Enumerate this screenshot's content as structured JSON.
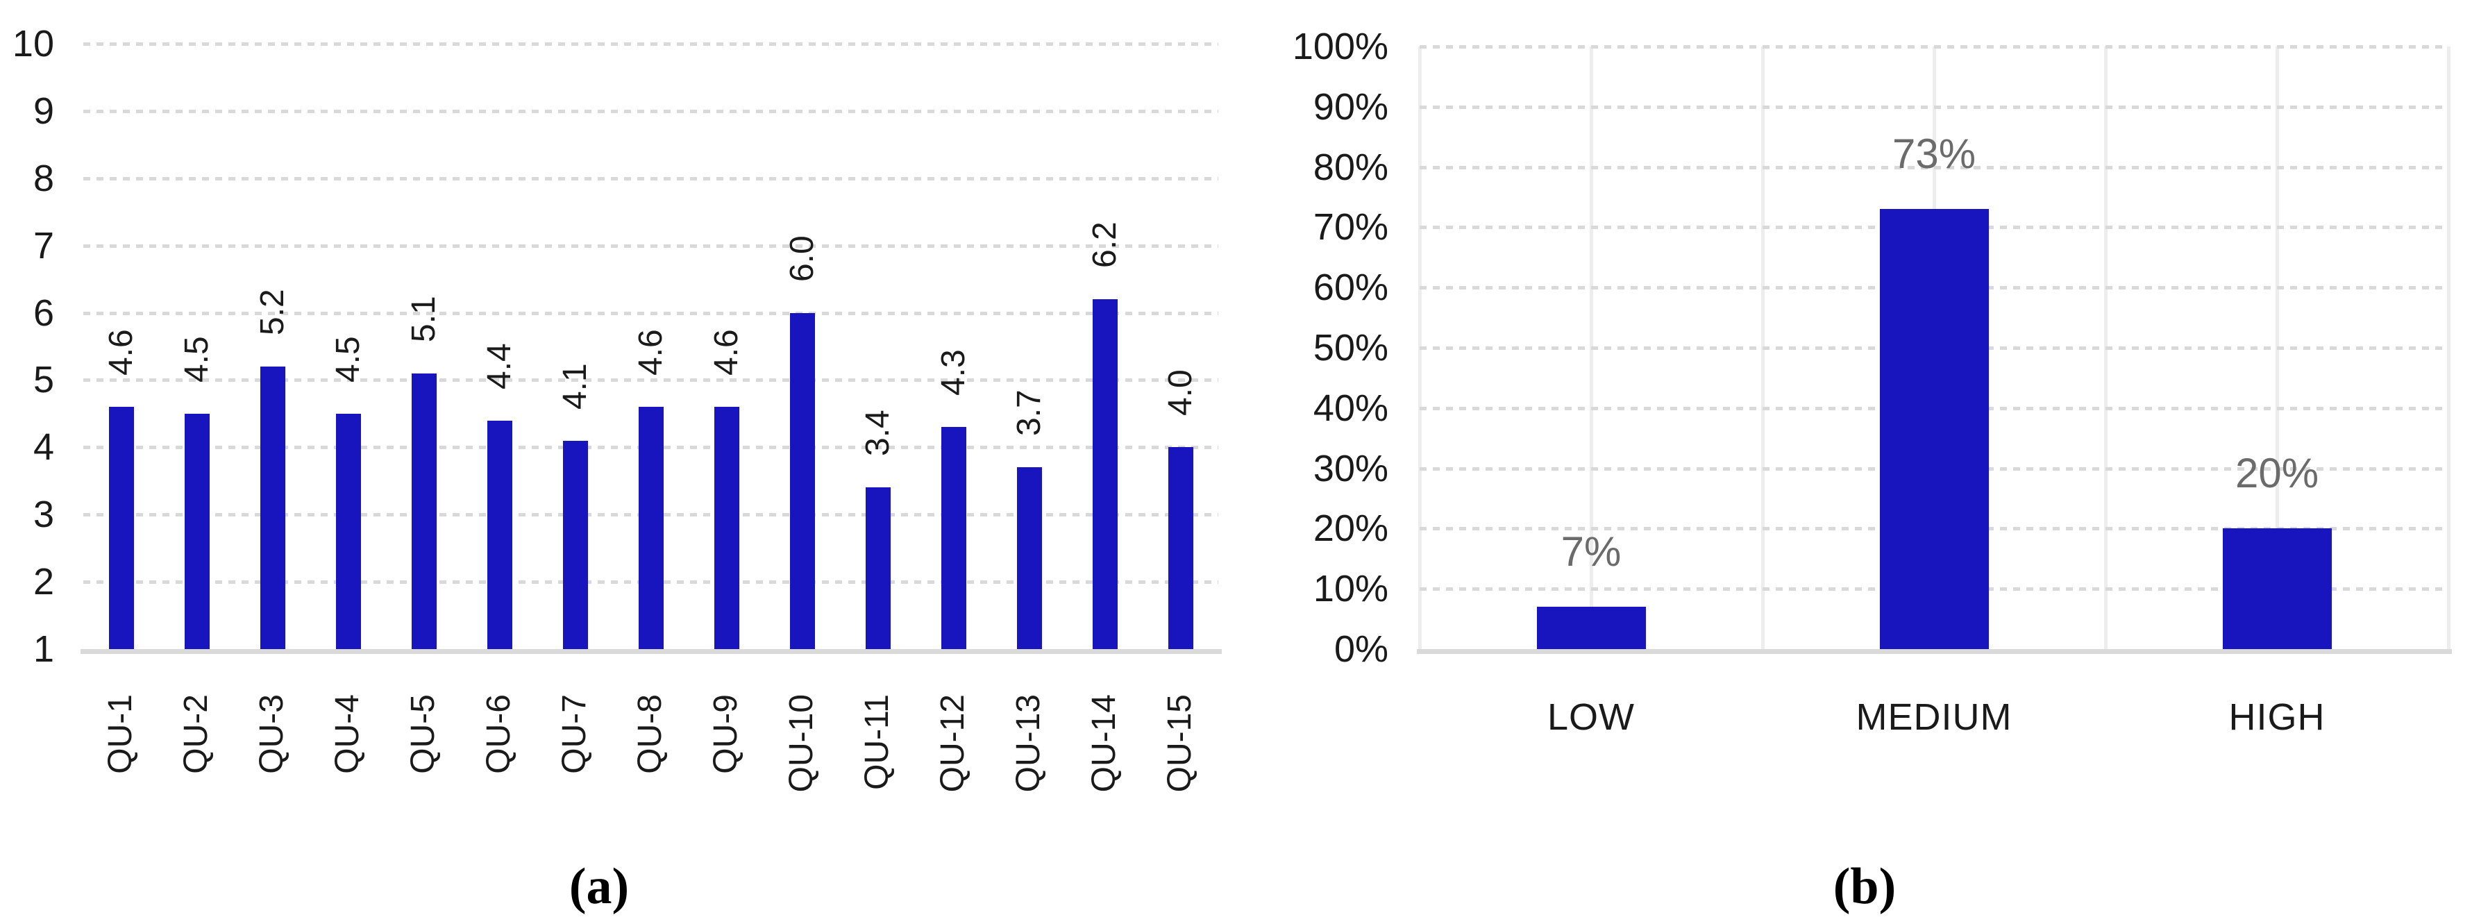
{
  "figure": {
    "captions": {
      "a": "(a)",
      "b": "(b)"
    }
  },
  "colors": {
    "bar_blue": "#1815BE",
    "grid_dot_gray": "#D9D9D9",
    "grid_vertical_gray": "#EDEDED",
    "axis_text": "#1A1A1A",
    "value_label_gray": "#6B6B6B"
  },
  "chart_data": [
    {
      "id": "a",
      "type": "bar",
      "title": "",
      "xlabel": "",
      "ylabel": "",
      "categories": [
        "QU-1",
        "QU-2",
        "QU-3",
        "QU-4",
        "QU-5",
        "QU-6",
        "QU-7",
        "QU-8",
        "QU-9",
        "QU-10",
        "QU-11",
        "QU-12",
        "QU-13",
        "QU-14",
        "QU-15"
      ],
      "values": [
        4.6,
        4.5,
        5.2,
        4.5,
        5.1,
        4.4,
        4.1,
        4.6,
        4.6,
        6.0,
        3.4,
        4.3,
        3.7,
        6.2,
        4.0
      ],
      "value_labels": [
        "4.6",
        "4.5",
        "5.2",
        "4.5",
        "5.1",
        "4.4",
        "4.1",
        "4.6",
        "4.6",
        "6.0",
        "3.4",
        "4.3",
        "3.7",
        "6.2",
        "4.0"
      ],
      "ylim": [
        1,
        10
      ],
      "ytick_labels": [
        "10",
        "9",
        "8",
        "7",
        "6",
        "5",
        "4",
        "3",
        "2",
        "1"
      ],
      "grid": "horizontal-dotted",
      "legend": "none",
      "bar_color": "#1815BE",
      "value_label_rotation_deg": -90,
      "category_label_rotation_deg": -90
    },
    {
      "id": "b",
      "type": "bar",
      "title": "",
      "xlabel": "",
      "ylabel": "",
      "categories": [
        "LOW",
        "MEDIUM",
        "HIGH"
      ],
      "values": [
        7,
        73,
        20
      ],
      "value_labels": [
        "7%",
        "73%",
        "20%"
      ],
      "ylim": [
        0,
        100
      ],
      "ytick_labels": [
        "100%",
        "90%",
        "80%",
        "70%",
        "60%",
        "50%",
        "40%",
        "30%",
        "20%",
        "10%",
        "0%"
      ],
      "grid": "horizontal-dotted-and-vertical-solid",
      "legend": "none",
      "bar_color": "#1815BE",
      "value_label_rotation_deg": 0,
      "category_label_rotation_deg": 0
    }
  ]
}
